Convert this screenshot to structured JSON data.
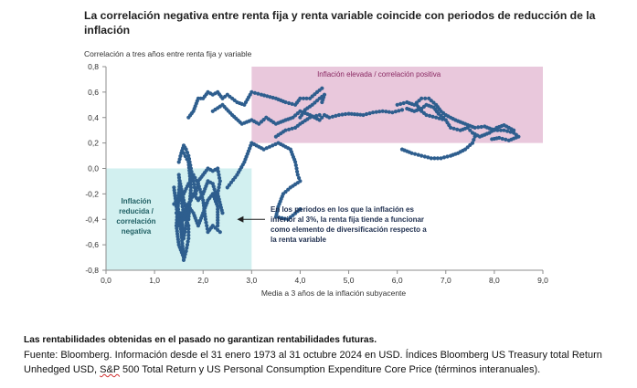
{
  "header": {
    "title": "La correlación negativa entre renta fija y renta variable coincide con periodos de reducción de la inflación"
  },
  "footer": {
    "disclaimer": "Las rentabilidades obtenidas en el pasado no garantizan rentabilidades futuras.",
    "source_pre": "Fuente: Bloomberg. Información desde el 31 enero 1973 al 31 octubre 2024 en USD. Índices Bloomberg US Treasury total Return Unhedged USD, ",
    "source_sp": "S&P",
    "source_post": " 500 Total Return y US Personal Consumption Expenditure Core Price (términos interanuales)."
  },
  "colors": {
    "points": "#2e5e8e",
    "high_zone": "#e9c8dc",
    "low_zone": "#d2f0f0",
    "high_text": "#8a2a63",
    "low_text": "#1f5f63"
  },
  "chart_data": {
    "type": "scatter",
    "title": "La correlación negativa entre renta fija y renta variable coincide con periodos de reducción de la inflación",
    "ylabel": "Correlación a tres años entre renta fija y variable",
    "xlabel": "Media a 3 años de la inflación subyacente",
    "xlim": [
      0,
      9
    ],
    "ylim": [
      -0.8,
      0.8
    ],
    "xticks": [
      "0,0",
      "1,0",
      "2,0",
      "3,0",
      "4,0",
      "5,0",
      "6,0",
      "7,0",
      "8,0",
      "9,0"
    ],
    "yticks": [
      "-0,8",
      "-0,6",
      "-0,4",
      "-0,2",
      "0,0",
      "0,2",
      "0,4",
      "0,6",
      "0,8"
    ],
    "grid": false,
    "zones": [
      {
        "name": "high",
        "label": "Inflación elevada / correlación positiva",
        "x": [
          3,
          9
        ],
        "y": [
          0.2,
          0.8
        ]
      },
      {
        "name": "low",
        "label_lines": [
          "Inflación",
          "reducida /",
          "correlación",
          "negativa"
        ],
        "x": [
          0,
          3
        ],
        "y": [
          -0.8,
          0
        ]
      }
    ],
    "annotation": {
      "lines": [
        "En los periodos en los que la inflación es",
        "inferior al 3%, la renta fija tiende a funcionar",
        "como elemento de diversificación respecto a",
        "la renta variable"
      ],
      "arrow_to": [
        2.7,
        -0.4
      ]
    },
    "segments": [
      [
        [
          1.5,
          -0.2
        ],
        [
          1.45,
          -0.45
        ],
        [
          1.5,
          -0.6
        ],
        [
          1.6,
          -0.7
        ],
        [
          1.55,
          -0.5
        ],
        [
          1.48,
          -0.3
        ],
        [
          1.52,
          -0.1
        ],
        [
          1.6,
          -0.25
        ],
        [
          1.7,
          -0.4
        ],
        [
          1.75,
          -0.15
        ],
        [
          1.7,
          0.05
        ],
        [
          1.6,
          0.12
        ]
      ],
      [
        [
          1.4,
          -0.15
        ],
        [
          1.45,
          -0.3
        ],
        [
          1.5,
          -0.45
        ],
        [
          1.55,
          -0.35
        ],
        [
          1.6,
          -0.55
        ],
        [
          1.65,
          -0.45
        ],
        [
          1.7,
          -0.3
        ],
        [
          1.8,
          -0.35
        ],
        [
          1.9,
          -0.45
        ],
        [
          2.0,
          -0.35
        ],
        [
          2.1,
          -0.25
        ],
        [
          2.2,
          -0.2
        ],
        [
          2.3,
          -0.3
        ],
        [
          2.3,
          -0.45
        ]
      ],
      [
        [
          1.5,
          0.05
        ],
        [
          1.55,
          0.12
        ],
        [
          1.6,
          0.18
        ],
        [
          1.65,
          0.15
        ],
        [
          1.7,
          0.1
        ],
        [
          1.75,
          0.0
        ],
        [
          1.8,
          -0.1
        ],
        [
          1.85,
          -0.2
        ],
        [
          1.9,
          -0.1
        ],
        [
          2.0,
          -0.05
        ],
        [
          2.1,
          0.0
        ],
        [
          2.2,
          -0.02
        ],
        [
          2.3,
          0.0
        ],
        [
          2.35,
          -0.1
        ],
        [
          2.3,
          -0.2
        ],
        [
          2.4,
          -0.35
        ]
      ],
      [
        [
          1.5,
          -0.05
        ],
        [
          1.55,
          -0.25
        ],
        [
          1.6,
          -0.35
        ],
        [
          1.7,
          -0.45
        ],
        [
          1.7,
          -0.55
        ],
        [
          1.65,
          -0.65
        ],
        [
          1.6,
          -0.72
        ]
      ],
      [
        [
          1.45,
          -0.35
        ],
        [
          1.5,
          -0.4
        ],
        [
          1.6,
          -0.4
        ],
        [
          1.65,
          -0.3
        ],
        [
          1.75,
          -0.25
        ],
        [
          1.8,
          -0.2
        ],
        [
          1.9,
          -0.25
        ],
        [
          2.0,
          -0.2
        ],
        [
          2.1,
          -0.1
        ],
        [
          2.2,
          -0.12
        ],
        [
          2.3,
          -0.25
        ]
      ],
      [
        [
          1.4,
          -0.28
        ],
        [
          1.5,
          -0.25
        ],
        [
          1.6,
          -0.2
        ],
        [
          1.7,
          -0.12
        ],
        [
          1.8,
          -0.05
        ],
        [
          1.9,
          -0.12
        ],
        [
          2.0,
          -0.25
        ],
        [
          2.05,
          -0.4
        ],
        [
          2.1,
          -0.5
        ],
        [
          2.2,
          -0.45
        ],
        [
          2.35,
          -0.5
        ]
      ],
      [
        [
          2.5,
          -0.15
        ],
        [
          2.7,
          -0.05
        ],
        [
          2.85,
          0.05
        ],
        [
          3.0,
          0.2
        ],
        [
          3.25,
          0.15
        ],
        [
          3.55,
          0.2
        ],
        [
          3.8,
          0.15
        ],
        [
          3.9,
          0.05
        ],
        [
          3.95,
          -0.05
        ],
        [
          4.0,
          -0.1
        ],
        [
          3.8,
          -0.15
        ],
        [
          3.65,
          -0.2
        ],
        [
          3.55,
          -0.3
        ],
        [
          3.5,
          -0.38
        ],
        [
          3.75,
          -0.4
        ],
        [
          4.0,
          -0.32
        ]
      ],
      [
        [
          1.7,
          0.4
        ],
        [
          1.8,
          0.45
        ],
        [
          1.9,
          0.55
        ],
        [
          2.0,
          0.55
        ],
        [
          2.1,
          0.6
        ],
        [
          2.2,
          0.58
        ],
        [
          2.3,
          0.6
        ],
        [
          2.4,
          0.55
        ],
        [
          2.5,
          0.58
        ],
        [
          2.6,
          0.55
        ],
        [
          2.7,
          0.52
        ],
        [
          2.85,
          0.5
        ],
        [
          3.0,
          0.6
        ],
        [
          3.2,
          0.58
        ],
        [
          3.5,
          0.55
        ],
        [
          3.7,
          0.52
        ],
        [
          3.9,
          0.5
        ],
        [
          4.0,
          0.55
        ],
        [
          4.2,
          0.55
        ],
        [
          4.35,
          0.6
        ],
        [
          4.45,
          0.63
        ]
      ],
      [
        [
          2.2,
          0.45
        ],
        [
          2.4,
          0.5
        ],
        [
          2.6,
          0.42
        ],
        [
          2.8,
          0.35
        ],
        [
          3.0,
          0.38
        ],
        [
          3.15,
          0.35
        ],
        [
          3.3,
          0.4
        ],
        [
          3.5,
          0.35
        ],
        [
          3.7,
          0.38
        ],
        [
          3.85,
          0.4
        ],
        [
          4.0,
          0.45
        ],
        [
          4.2,
          0.42
        ],
        [
          4.4,
          0.38
        ],
        [
          4.5,
          0.42
        ],
        [
          4.6,
          0.4
        ],
        [
          4.8,
          0.42
        ],
        [
          5.0,
          0.43
        ],
        [
          5.3,
          0.42
        ],
        [
          5.5,
          0.44
        ],
        [
          5.7,
          0.45
        ],
        [
          5.9,
          0.44
        ],
        [
          6.1,
          0.46
        ]
      ],
      [
        [
          6.0,
          0.5
        ],
        [
          6.2,
          0.52
        ],
        [
          6.35,
          0.5
        ],
        [
          6.5,
          0.55
        ],
        [
          6.65,
          0.55
        ],
        [
          6.8,
          0.5
        ],
        [
          6.9,
          0.45
        ],
        [
          7.0,
          0.42
        ],
        [
          7.2,
          0.38
        ],
        [
          7.4,
          0.35
        ],
        [
          7.6,
          0.32
        ],
        [
          7.8,
          0.33
        ],
        [
          8.0,
          0.3
        ],
        [
          8.2,
          0.3
        ],
        [
          8.4,
          0.28
        ],
        [
          8.5,
          0.25
        ],
        [
          8.3,
          0.22
        ],
        [
          8.1,
          0.24
        ],
        [
          7.95,
          0.23
        ]
      ],
      [
        [
          6.4,
          0.5
        ],
        [
          6.5,
          0.45
        ],
        [
          6.6,
          0.42
        ],
        [
          6.8,
          0.4
        ],
        [
          7.0,
          0.38
        ],
        [
          7.1,
          0.32
        ],
        [
          7.3,
          0.3
        ],
        [
          7.45,
          0.32
        ],
        [
          7.55,
          0.28
        ],
        [
          7.7,
          0.25
        ],
        [
          7.9,
          0.28
        ],
        [
          8.05,
          0.32
        ],
        [
          8.2,
          0.34
        ],
        [
          8.3,
          0.32
        ],
        [
          8.4,
          0.3
        ]
      ],
      [
        [
          6.2,
          0.47
        ],
        [
          6.35,
          0.45
        ],
        [
          6.5,
          0.47
        ],
        [
          6.6,
          0.5
        ],
        [
          6.75,
          0.48
        ],
        [
          6.85,
          0.43
        ],
        [
          6.95,
          0.4
        ]
      ],
      [
        [
          6.1,
          0.15
        ],
        [
          6.3,
          0.12
        ],
        [
          6.5,
          0.1
        ],
        [
          6.7,
          0.08
        ],
        [
          6.9,
          0.08
        ],
        [
          7.1,
          0.1
        ],
        [
          7.25,
          0.12
        ],
        [
          7.4,
          0.15
        ],
        [
          7.55,
          0.2
        ],
        [
          7.6,
          0.25
        ]
      ],
      [
        [
          3.5,
          0.25
        ],
        [
          3.7,
          0.3
        ],
        [
          3.9,
          0.32
        ],
        [
          4.0,
          0.35
        ],
        [
          4.2,
          0.4
        ],
        [
          4.4,
          0.42
        ]
      ],
      [
        [
          4.0,
          0.4
        ],
        [
          4.1,
          0.46
        ],
        [
          4.25,
          0.5
        ],
        [
          4.4,
          0.55
        ],
        [
          4.5,
          0.58
        ],
        [
          4.45,
          0.52
        ]
      ]
    ]
  }
}
